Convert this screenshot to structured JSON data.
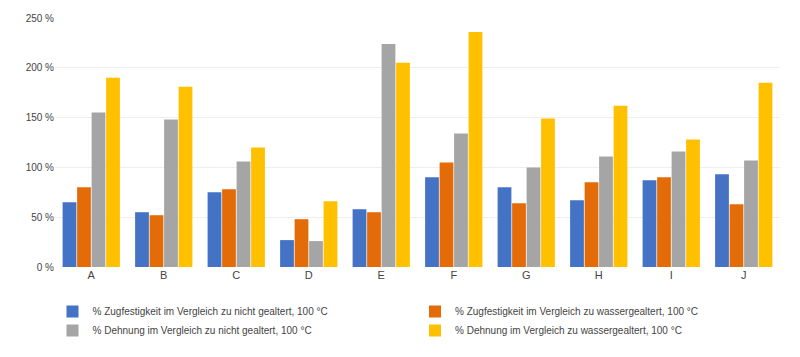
{
  "chart_data": {
    "type": "bar",
    "categories": [
      "A",
      "B",
      "C",
      "D",
      "E",
      "F",
      "G",
      "H",
      "I",
      "J"
    ],
    "series": [
      {
        "name": "% Zugfestigkeit im Vergleich zu nicht gealtert, 100 °C",
        "color": "#4472C4",
        "values": [
          65,
          55,
          75,
          27,
          58,
          90,
          80,
          67,
          87,
          93
        ]
      },
      {
        "name": "% Zugfestigkeit im Vergleich zu wassergealtert, 100 °C",
        "color": "#E36C09",
        "values": [
          80,
          52,
          78,
          48,
          55,
          105,
          64,
          85,
          90,
          63
        ]
      },
      {
        "name": "% Dehnung im Vergleich zu nicht gealtert, 100 °C",
        "color": "#A5A5A5",
        "values": [
          155,
          148,
          106,
          26,
          224,
          134,
          100,
          111,
          116,
          107
        ]
      },
      {
        "name": "% Dehnung im Vergleich zu wassergealtert, 100 °C",
        "color": "#FFC000",
        "values": [
          190,
          181,
          120,
          66,
          205,
          236,
          149,
          162,
          128,
          185
        ]
      }
    ],
    "ylim": [
      0,
      250
    ],
    "yticks": [
      {
        "value": 0,
        "label": "0 %"
      },
      {
        "value": 50,
        "label": "50 %"
      },
      {
        "value": 100,
        "label": "100 %"
      },
      {
        "value": 150,
        "label": "150 %"
      },
      {
        "value": 200,
        "label": "200 %"
      },
      {
        "value": 250,
        "label": "250 %"
      }
    ],
    "grid": true,
    "legend": "bottom"
  }
}
